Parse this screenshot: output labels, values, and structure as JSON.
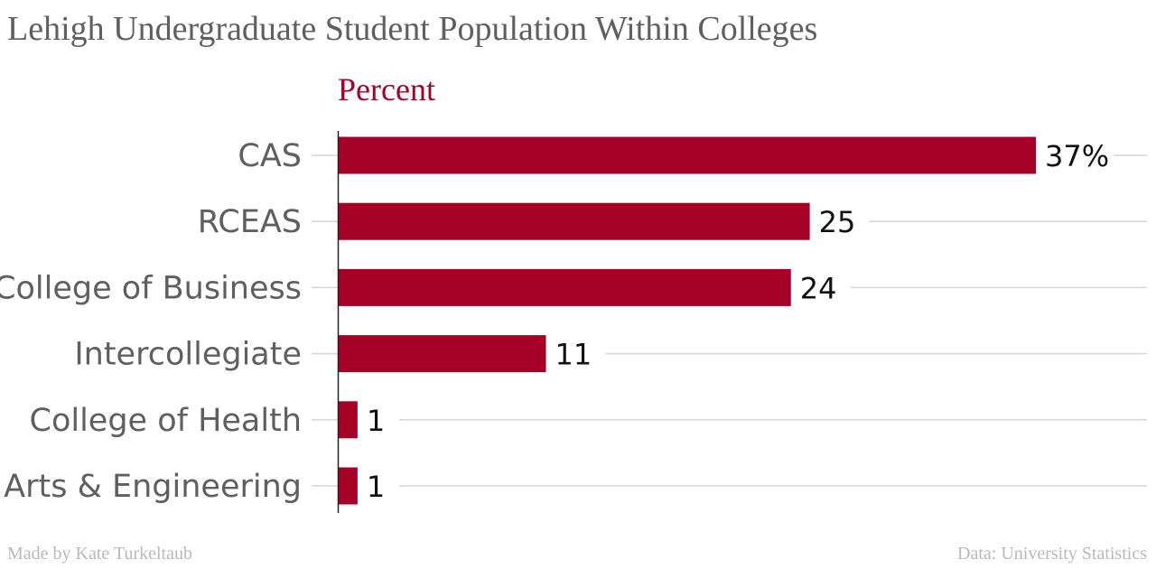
{
  "title": "Lehigh Undergraduate Student Population Within Colleges",
  "footer": {
    "credit": "Made by Kate Turkeltaub",
    "source": "Data: University Statistics"
  },
  "colors": {
    "bar": "#a50026",
    "title": "#5f5f5f",
    "unit_label": "#a50026",
    "grid": "#d6d6d6"
  },
  "chart_data": {
    "type": "bar",
    "orientation": "horizontal",
    "unit_label": "Percent",
    "categories": [
      "CAS",
      "RCEAS",
      "College of Business",
      "Intercollegiate",
      "College of Health",
      "Arts & Engineering"
    ],
    "values": [
      37,
      25,
      24,
      11,
      1,
      1
    ],
    "value_labels": [
      "37%",
      "25",
      "24",
      "11",
      "1",
      "1"
    ],
    "xlim": [
      0,
      37
    ],
    "grid": true
  }
}
